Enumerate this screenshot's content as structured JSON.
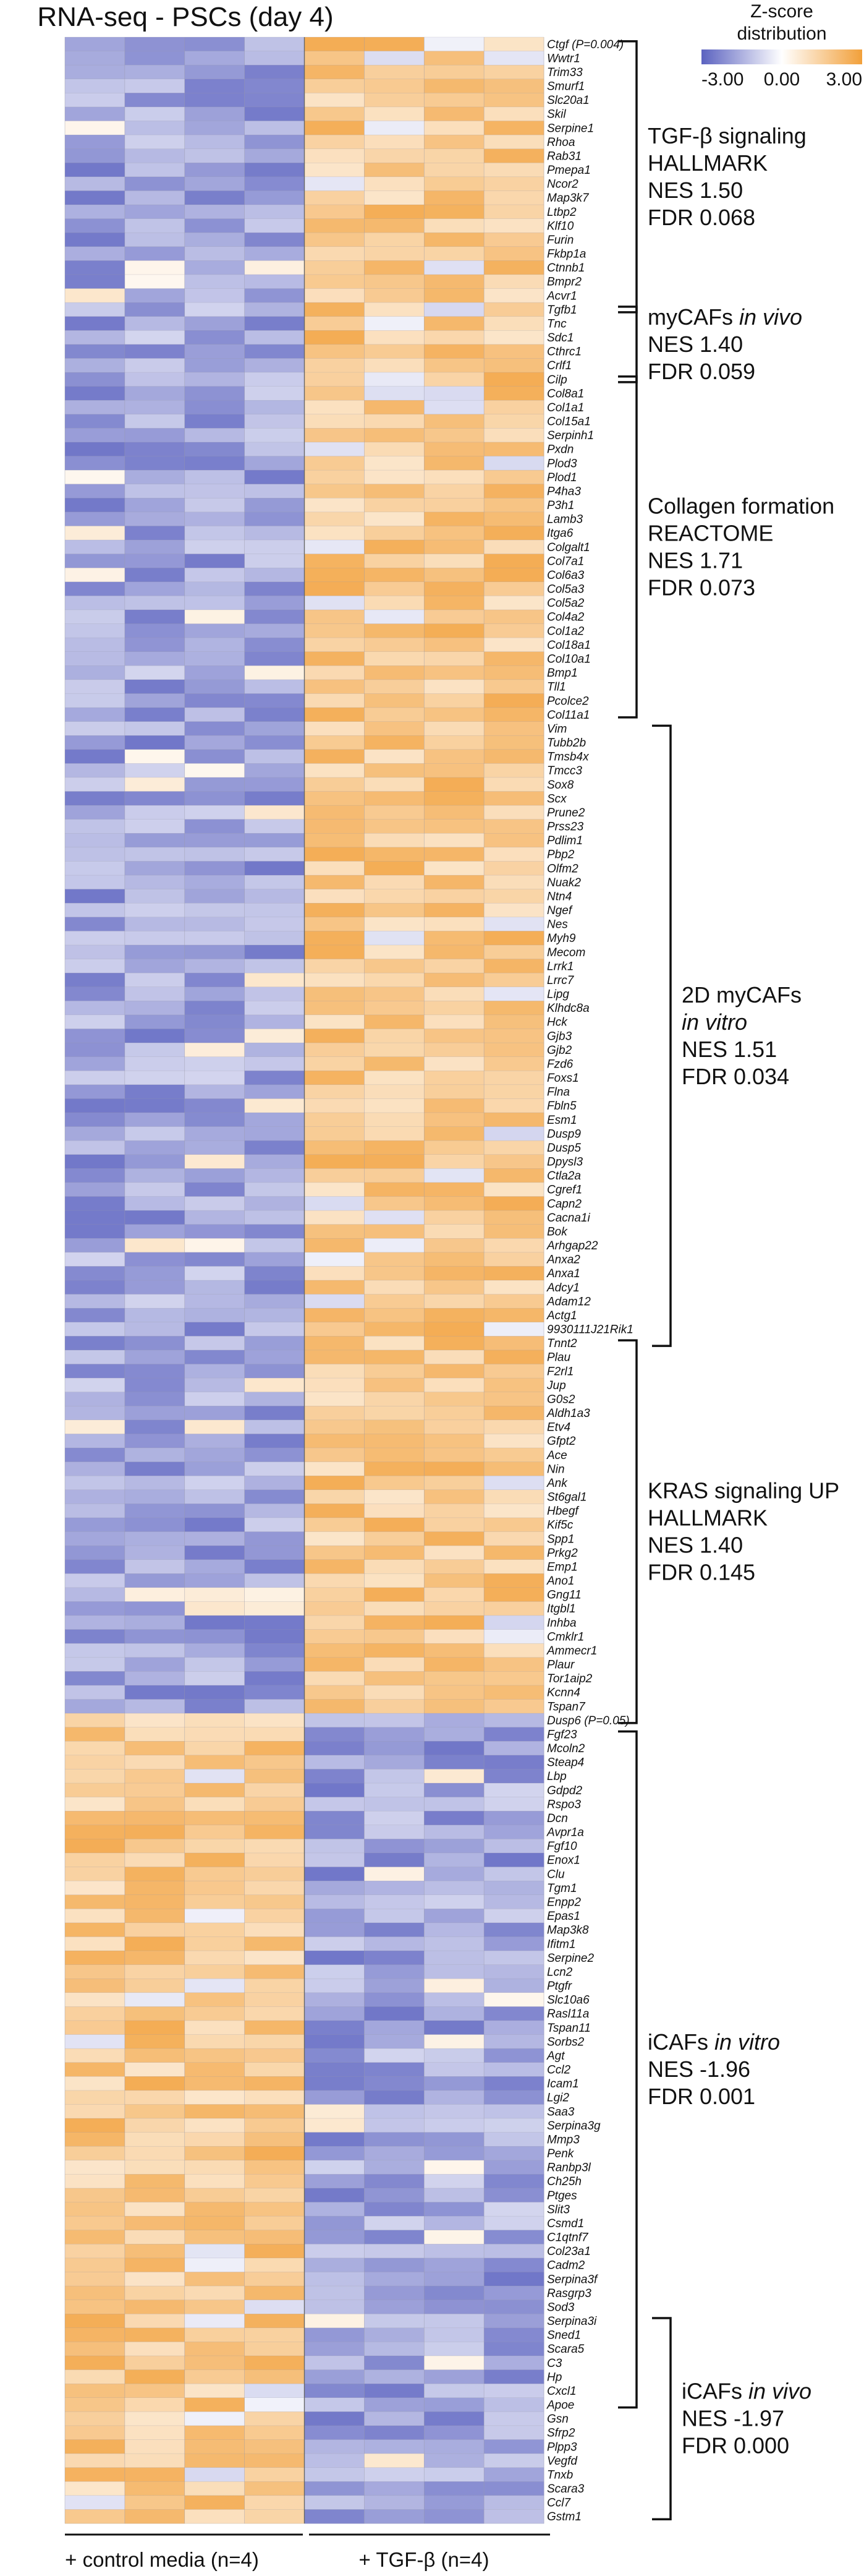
{
  "chart_data": {
    "type": "heatmap",
    "title": "RNA-seq - PSCs (day 4)",
    "colorbar": {
      "title": [
        "Z-score",
        "distribution"
      ],
      "min": -3.0,
      "mid": 0.0,
      "max": 3.0,
      "tick_labels": [
        "-3.00",
        "0.00",
        "3.00"
      ],
      "colors": {
        "low": "#5b62c0",
        "mid": "#ffffff",
        "high": "#f2a03a"
      }
    },
    "groups": [
      {
        "label": "+ control media (n=4)",
        "n": 4
      },
      {
        "label": "+ TGF-β (n=4)",
        "n": 4
      }
    ],
    "genes": [
      "Ctgf",
      "Wwtr1",
      "Trim33",
      "Smurf1",
      "Slc20a1",
      "Skil",
      "Serpine1",
      "Rhoa",
      "Rab31",
      "Pmepa1",
      "Ncor2",
      "Map3k7",
      "Ltbp2",
      "Klf10",
      "Furin",
      "Fkbp1a",
      "Ctnnb1",
      "Bmpr2",
      "Acvr1",
      "Tgfb1",
      "Tnc",
      "Sdc1",
      "Cthrc1",
      "Crlf1",
      "Cilp",
      "Col8a1",
      "Col1a1",
      "Col15a1",
      "Serpinh1",
      "Pxdn",
      "Plod3",
      "Plod1",
      "P4ha3",
      "P3h1",
      "Lamb3",
      "Itga6",
      "Colgalt1",
      "Col7a1",
      "Col6a3",
      "Col5a3",
      "Col5a2",
      "Col4a2",
      "Col1a2",
      "Col18a1",
      "Col10a1",
      "Bmp1",
      "Tll1",
      "Pcolce2",
      "Col11a1",
      "Vim",
      "Tubb2b",
      "Tmsb4x",
      "Tmcc3",
      "Sox8",
      "Scx",
      "Prune2",
      "Prss23",
      "Pdlim1",
      "Pbp2",
      "Olfm2",
      "Nuak2",
      "Ntn4",
      "Ngef",
      "Nes",
      "Myh9",
      "Mecom",
      "Lrrk1",
      "Lrrc7",
      "Lipg",
      "Klhdc8a",
      "Hck",
      "Gjb3",
      "Gjb2",
      "Fzd6",
      "Foxs1",
      "Flna",
      "Fbln5",
      "Esm1",
      "Dusp9",
      "Dusp5",
      "Dpysl3",
      "Ctla2a",
      "Cgref1",
      "Capn2",
      "Cacna1i",
      "Bok",
      "Arhgap22",
      "Anxa2",
      "Anxa1",
      "Adcy1",
      "Adam12",
      "Actg1",
      "9930111J21Rik1",
      "Tnnt2",
      "Plau",
      "F2rl1",
      "Jup",
      "G0s2",
      "Aldh1a3",
      "Etv4",
      "Gfpt2",
      "Ace",
      "Nin",
      "Ank",
      "St6gal1",
      "Hbegf",
      "Kif5c",
      "Spp1",
      "Prkg2",
      "Emp1",
      "Ano1",
      "Gng11",
      "Itgbl1",
      "Inhba",
      "Cmklr1",
      "Ammecr1",
      "Plaur",
      "Tor1aip2",
      "Kcnn4",
      "Tspan7",
      "Dusp6",
      "Fgf23",
      "Mcoln2",
      "Steap4",
      "Lbp",
      "Gdpd2",
      "Rspo3",
      "Dcn",
      "Avpr1a",
      "Fgf10",
      "Enox1",
      "Clu",
      "Tgm1",
      "Enpp2",
      "Epas1",
      "Map3k8",
      "Ifitm1",
      "Serpine2",
      "Lcn2",
      "Ptgfr",
      "Slc10a6",
      "Rasl11a",
      "Tspan11",
      "Sorbs2",
      "Agt",
      "Ccl2",
      "Icam1",
      "Lgi2",
      "Saa3",
      "Serpina3g",
      "Mmp3",
      "Penk",
      "Ranbp3l",
      "Ch25h",
      "Ptges",
      "Slit3",
      "Csmd1",
      "C1qtnf7",
      "Col23a1",
      "Cadm2",
      "Serpina3f",
      "Rasgrp3",
      "Sod3",
      "Serpina3i",
      "Sned1",
      "Scara5",
      "C3",
      "Hp",
      "Cxcl1",
      "Apoe",
      "Gsn",
      "Sfrp2",
      "Plpp3",
      "Vegfd",
      "Tnxb",
      "Scara3",
      "Ccl7",
      "Gstm1"
    ],
    "up_in_tgfb_count": 120,
    "gene_notes": {
      "Ctgf": "(P=0.004)",
      "Dusp6": "(P=0.05)"
    },
    "gene_sets": [
      {
        "lines": [
          {
            "t": "TGF-β signaling"
          },
          {
            "t": "HALLMARK"
          },
          {
            "t": "NES 1.50"
          },
          {
            "t": "FDR 0.068"
          }
        ],
        "start": "Ctgf",
        "end": "Tgfb1",
        "col": 0
      },
      {
        "lines": [
          {
            "t": "myCAFs",
            "it": " in vivo"
          },
          {
            "t": "NES 1.40"
          },
          {
            "t": "FDR 0.059"
          }
        ],
        "start": "Tgfb1",
        "end": "Cilp",
        "col": 0
      },
      {
        "lines": [
          {
            "t": "Collagen formation"
          },
          {
            "t": "REACTOME"
          },
          {
            "t": "NES 1.71"
          },
          {
            "t": "FDR 0.073"
          }
        ],
        "start": "Cilp",
        "end": "Col11a1",
        "col": 0
      },
      {
        "lines": [
          {
            "t": "2D myCAFs"
          },
          {
            "t": "",
            "it": "in vitro"
          },
          {
            "t": "NES 1.51"
          },
          {
            "t": "FDR 0.034"
          }
        ],
        "start": "Vim",
        "end": "Tnnt2",
        "col": 1
      },
      {
        "lines": [
          {
            "t": "KRAS signaling UP"
          },
          {
            "t": "HALLMARK"
          },
          {
            "t": "NES 1.40"
          },
          {
            "t": "FDR 0.145"
          }
        ],
        "start": "Tnnt2",
        "end": "Dusp6",
        "col": 0
      },
      {
        "lines": [
          {
            "t": "iCAFs",
            "it": " in vitro"
          },
          {
            "t": "NES -1.96"
          },
          {
            "t": "FDR 0.001"
          }
        ],
        "start": "Fgf23",
        "end": "Apoe",
        "col": 0
      },
      {
        "lines": [
          {
            "t": "iCAFs",
            "it": " in vivo"
          },
          {
            "t": "NES -1.97"
          },
          {
            "t": "FDR 0.000"
          }
        ],
        "start": "Serpina3i",
        "end": "Gstm1",
        "col": 1
      }
    ]
  }
}
